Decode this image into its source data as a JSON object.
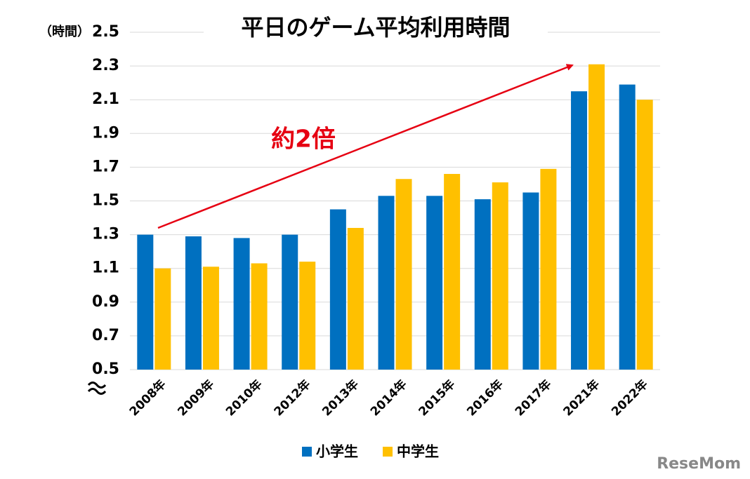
{
  "chart_data": {
    "type": "bar",
    "title": "平日のゲーム平均利用時間",
    "y_label": "（時間）",
    "annotation": "約2倍",
    "watermark": "ReseMom",
    "categories": [
      "2008年",
      "2009年",
      "2010年",
      "2012年",
      "2013年",
      "2014年",
      "2015年",
      "2016年",
      "2017年",
      "2021年",
      "2022年"
    ],
    "series": [
      {
        "name": "小学生",
        "color": "#0070c0",
        "values": [
          1.3,
          1.29,
          1.28,
          1.3,
          1.45,
          1.53,
          1.53,
          1.51,
          1.55,
          2.15,
          2.19
        ]
      },
      {
        "name": "中学生",
        "color": "#ffc000",
        "values": [
          1.1,
          1.11,
          1.13,
          1.14,
          1.34,
          1.63,
          1.66,
          1.61,
          1.69,
          2.31,
          2.1
        ]
      }
    ],
    "ylim": [
      0.5,
      2.5
    ],
    "yticks": [
      0.5,
      0.7,
      0.9,
      1.1,
      1.3,
      1.5,
      1.7,
      1.9,
      2.1,
      2.3,
      2.5
    ],
    "grid": true,
    "legend": "bottom"
  }
}
